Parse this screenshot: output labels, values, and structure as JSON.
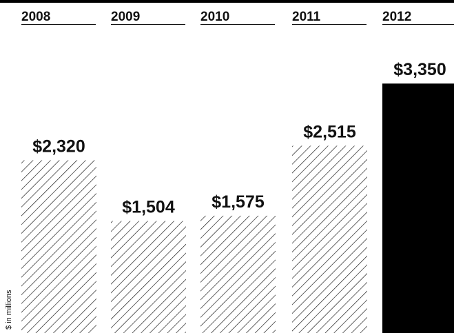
{
  "chart_data": {
    "type": "bar",
    "categories": [
      "2008",
      "2009",
      "2010",
      "2011",
      "2012"
    ],
    "values": [
      2320,
      1504,
      1575,
      2515,
      3350
    ],
    "value_labels": [
      "$2,320",
      "$1,504",
      "$1,575",
      "$2,515",
      "$3,350"
    ],
    "ylabel": "$ in millions",
    "ylim": [
      0,
      3500
    ],
    "grid": false,
    "colors": {
      "hatched": "#111111",
      "highlight": "#000000",
      "background": "#ffffff"
    },
    "highlight_category": "2012",
    "fill_styles": [
      "hatched",
      "hatched",
      "hatched",
      "hatched",
      "solid"
    ]
  }
}
